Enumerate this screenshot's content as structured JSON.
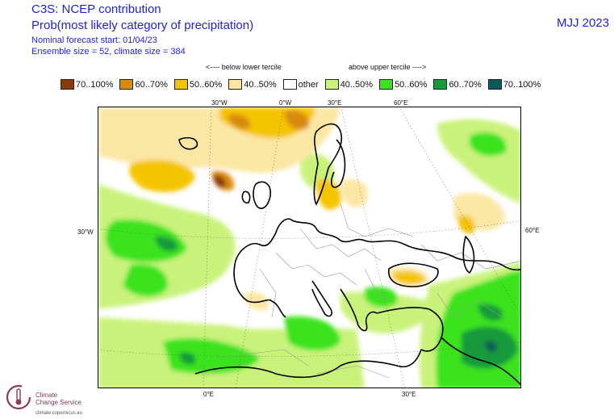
{
  "header": {
    "line1": "C3S: NCEP contribution",
    "line2": "Prob(most likely category of precipitation)",
    "line3": "Nominal forecast start: 01/04/23",
    "line4": "Ensemble size = 52, climate size = 384",
    "period": "MJJ 2023"
  },
  "legend": {
    "below_label": "<---- below lower tercile",
    "above_label": "above upper tercile ---->",
    "items": [
      {
        "label": "70..100%",
        "color": "#8b3a0e"
      },
      {
        "label": "60..70%",
        "color": "#d98a0a"
      },
      {
        "label": "50..60%",
        "color": "#f5c400"
      },
      {
        "label": "40..50%",
        "color": "#fbe7a4"
      },
      {
        "label": "other",
        "color": "#ffffff"
      },
      {
        "label": "40..50%",
        "color": "#c9f27a"
      },
      {
        "label": "50..60%",
        "color": "#3be31f"
      },
      {
        "label": "60..70%",
        "color": "#149a3a"
      },
      {
        "label": "70..100%",
        "color": "#0b5a5a"
      }
    ]
  },
  "axes": {
    "top": [
      "30°W",
      "0°W",
      "30°E",
      "60°E"
    ],
    "left": "30°W",
    "right": "60°E",
    "bottom": [
      "0°E",
      "30°E"
    ]
  },
  "logo": {
    "name_line1": "Climate",
    "name_line2": "Change Service",
    "url": "climate.copernicus.eu"
  }
}
